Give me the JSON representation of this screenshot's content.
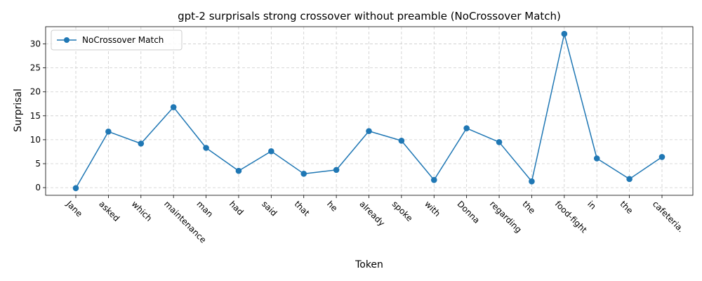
{
  "chart_data": {
    "type": "line",
    "title": "gpt-2 surprisals strong crossover without preamble (NoCrossover Match)",
    "xlabel": "Token",
    "ylabel": "Surprisal",
    "categories": [
      "Jane",
      "asked",
      "which",
      "maintenance",
      "man",
      "had",
      "said",
      "that",
      "he",
      "already",
      "spoke",
      "with",
      "Donna",
      "regarding",
      "the",
      "food-fight",
      "in",
      "the",
      "cafeteria."
    ],
    "series": [
      {
        "name": "NoCrossover Match",
        "color": "#1f77b4",
        "marker": "circle",
        "values": [
          -0.1,
          11.7,
          9.2,
          16.8,
          8.3,
          3.5,
          7.6,
          2.9,
          3.7,
          11.8,
          9.8,
          1.6,
          12.4,
          9.5,
          1.3,
          32.1,
          6.1,
          1.8,
          6.4
        ]
      }
    ],
    "ylim": [
      -1.6,
      33.6
    ],
    "yticks": [
      0,
      5,
      10,
      15,
      20,
      25,
      30
    ],
    "grid": true,
    "grid_style": "dashed",
    "legend_position": "top-left"
  }
}
